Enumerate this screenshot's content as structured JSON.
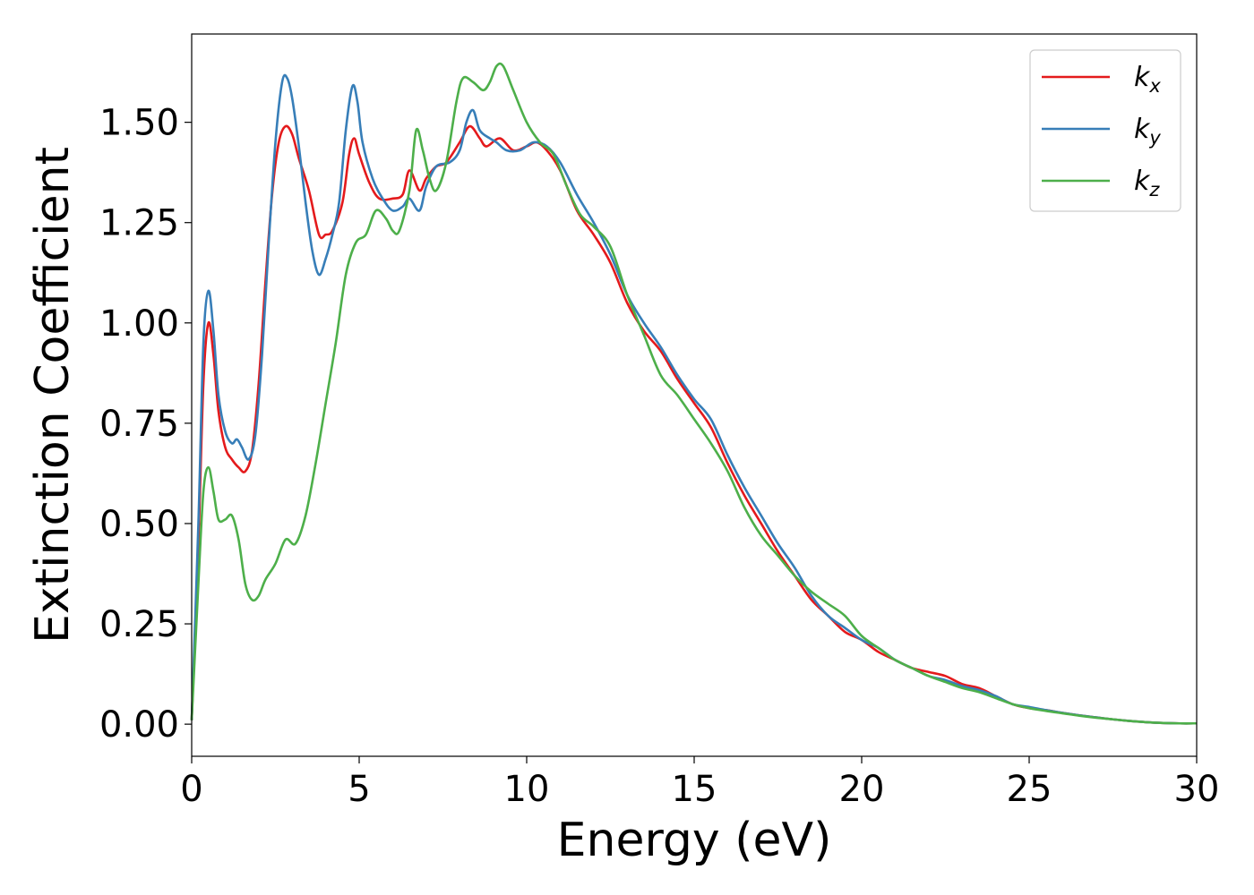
{
  "chart_data": {
    "type": "line",
    "title": "",
    "xlabel": "Energy (eV)",
    "ylabel": "Extinction Coefficient",
    "xlim": [
      0,
      30
    ],
    "ylim": [
      -0.08,
      1.72
    ],
    "xticks": [
      0,
      5,
      10,
      15,
      20,
      25,
      30
    ],
    "xtick_labels": [
      "0",
      "5",
      "10",
      "15",
      "20",
      "25",
      "30"
    ],
    "yticks": [
      0.0,
      0.25,
      0.5,
      0.75,
      1.0,
      1.25,
      1.5
    ],
    "ytick_labels": [
      "0.00",
      "0.25",
      "0.50",
      "0.75",
      "1.00",
      "1.25",
      "1.50"
    ],
    "grid": false,
    "legend_position": "top-right",
    "series": [
      {
        "name": "k_x",
        "label_main": "k",
        "label_sub": "x",
        "color": "#e41a1c",
        "points": [
          [
            0,
            0.01
          ],
          [
            0.2,
            0.45
          ],
          [
            0.35,
            0.85
          ],
          [
            0.5,
            1.0
          ],
          [
            0.65,
            0.92
          ],
          [
            0.8,
            0.78
          ],
          [
            1.0,
            0.69
          ],
          [
            1.2,
            0.66
          ],
          [
            1.4,
            0.64
          ],
          [
            1.6,
            0.63
          ],
          [
            1.8,
            0.68
          ],
          [
            2.0,
            0.85
          ],
          [
            2.2,
            1.1
          ],
          [
            2.4,
            1.32
          ],
          [
            2.6,
            1.45
          ],
          [
            2.8,
            1.49
          ],
          [
            3.0,
            1.47
          ],
          [
            3.2,
            1.41
          ],
          [
            3.5,
            1.33
          ],
          [
            3.8,
            1.22
          ],
          [
            4.0,
            1.22
          ],
          [
            4.2,
            1.23
          ],
          [
            4.5,
            1.3
          ],
          [
            4.7,
            1.42
          ],
          [
            4.85,
            1.46
          ],
          [
            5.0,
            1.42
          ],
          [
            5.3,
            1.35
          ],
          [
            5.6,
            1.31
          ],
          [
            6.0,
            1.31
          ],
          [
            6.3,
            1.32
          ],
          [
            6.5,
            1.38
          ],
          [
            6.8,
            1.33
          ],
          [
            7.0,
            1.36
          ],
          [
            7.3,
            1.39
          ],
          [
            7.6,
            1.4
          ],
          [
            8.0,
            1.45
          ],
          [
            8.3,
            1.49
          ],
          [
            8.6,
            1.46
          ],
          [
            8.8,
            1.44
          ],
          [
            9.2,
            1.46
          ],
          [
            9.6,
            1.43
          ],
          [
            10.0,
            1.44
          ],
          [
            10.3,
            1.45
          ],
          [
            10.6,
            1.43
          ],
          [
            11.0,
            1.38
          ],
          [
            11.5,
            1.28
          ],
          [
            12.0,
            1.22
          ],
          [
            12.5,
            1.15
          ],
          [
            13.0,
            1.05
          ],
          [
            13.5,
            0.98
          ],
          [
            14.0,
            0.93
          ],
          [
            14.5,
            0.86
          ],
          [
            15.0,
            0.8
          ],
          [
            15.5,
            0.74
          ],
          [
            16.0,
            0.65
          ],
          [
            16.5,
            0.57
          ],
          [
            17.0,
            0.5
          ],
          [
            17.5,
            0.43
          ],
          [
            18.0,
            0.37
          ],
          [
            18.5,
            0.31
          ],
          [
            19.0,
            0.27
          ],
          [
            19.5,
            0.23
          ],
          [
            20.0,
            0.21
          ],
          [
            20.5,
            0.18
          ],
          [
            21.0,
            0.16
          ],
          [
            21.5,
            0.14
          ],
          [
            22.0,
            0.13
          ],
          [
            22.5,
            0.12
          ],
          [
            23.0,
            0.1
          ],
          [
            23.5,
            0.09
          ],
          [
            24.0,
            0.07
          ],
          [
            24.5,
            0.05
          ],
          [
            25.0,
            0.04
          ],
          [
            25.5,
            0.035
          ],
          [
            26.0,
            0.028
          ],
          [
            26.5,
            0.022
          ],
          [
            27.0,
            0.017
          ],
          [
            27.5,
            0.012
          ],
          [
            28.0,
            0.008
          ],
          [
            28.5,
            0.005
          ],
          [
            29.0,
            0.003
          ],
          [
            29.5,
            0.002
          ],
          [
            30.0,
            0.002
          ]
        ]
      },
      {
        "name": "k_y",
        "label_main": "k",
        "label_sub": "y",
        "color": "#377eb8",
        "points": [
          [
            0,
            0.01
          ],
          [
            0.2,
            0.5
          ],
          [
            0.35,
            0.95
          ],
          [
            0.5,
            1.08
          ],
          [
            0.65,
            0.98
          ],
          [
            0.8,
            0.82
          ],
          [
            1.0,
            0.73
          ],
          [
            1.2,
            0.7
          ],
          [
            1.35,
            0.71
          ],
          [
            1.5,
            0.69
          ],
          [
            1.7,
            0.66
          ],
          [
            1.9,
            0.72
          ],
          [
            2.1,
            0.92
          ],
          [
            2.3,
            1.2
          ],
          [
            2.5,
            1.45
          ],
          [
            2.7,
            1.6
          ],
          [
            2.85,
            1.61
          ],
          [
            3.0,
            1.56
          ],
          [
            3.2,
            1.44
          ],
          [
            3.4,
            1.3
          ],
          [
            3.6,
            1.18
          ],
          [
            3.8,
            1.12
          ],
          [
            4.0,
            1.16
          ],
          [
            4.2,
            1.22
          ],
          [
            4.4,
            1.3
          ],
          [
            4.6,
            1.48
          ],
          [
            4.8,
            1.59
          ],
          [
            4.95,
            1.55
          ],
          [
            5.1,
            1.45
          ],
          [
            5.4,
            1.36
          ],
          [
            5.7,
            1.31
          ],
          [
            6.0,
            1.28
          ],
          [
            6.3,
            1.29
          ],
          [
            6.5,
            1.31
          ],
          [
            6.8,
            1.28
          ],
          [
            7.0,
            1.34
          ],
          [
            7.3,
            1.39
          ],
          [
            7.7,
            1.4
          ],
          [
            8.0,
            1.43
          ],
          [
            8.2,
            1.5
          ],
          [
            8.4,
            1.53
          ],
          [
            8.6,
            1.48
          ],
          [
            8.9,
            1.46
          ],
          [
            9.1,
            1.45
          ],
          [
            9.4,
            1.43
          ],
          [
            9.8,
            1.43
          ],
          [
            10.2,
            1.45
          ],
          [
            10.6,
            1.44
          ],
          [
            11.0,
            1.4
          ],
          [
            11.5,
            1.32
          ],
          [
            12.0,
            1.25
          ],
          [
            12.5,
            1.17
          ],
          [
            13.0,
            1.07
          ],
          [
            13.5,
            1.0
          ],
          [
            14.0,
            0.94
          ],
          [
            14.5,
            0.87
          ],
          [
            15.0,
            0.81
          ],
          [
            15.5,
            0.76
          ],
          [
            16.0,
            0.67
          ],
          [
            16.5,
            0.59
          ],
          [
            17.0,
            0.52
          ],
          [
            17.5,
            0.45
          ],
          [
            18.0,
            0.39
          ],
          [
            18.5,
            0.32
          ],
          [
            19.0,
            0.27
          ],
          [
            19.5,
            0.24
          ],
          [
            20.0,
            0.21
          ],
          [
            20.5,
            0.19
          ],
          [
            21.0,
            0.16
          ],
          [
            21.5,
            0.14
          ],
          [
            22.0,
            0.12
          ],
          [
            22.5,
            0.11
          ],
          [
            23.0,
            0.095
          ],
          [
            23.5,
            0.085
          ],
          [
            24.0,
            0.07
          ],
          [
            24.5,
            0.05
          ],
          [
            25.0,
            0.043
          ],
          [
            25.5,
            0.035
          ],
          [
            26.0,
            0.028
          ],
          [
            26.5,
            0.022
          ],
          [
            27.0,
            0.017
          ],
          [
            27.5,
            0.012
          ],
          [
            28.0,
            0.008
          ],
          [
            28.5,
            0.005
          ],
          [
            29.0,
            0.003
          ],
          [
            29.5,
            0.002
          ],
          [
            30.0,
            0.002
          ]
        ]
      },
      {
        "name": "k_z",
        "label_main": "k",
        "label_sub": "z",
        "color": "#4daf4a",
        "points": [
          [
            0,
            0.01
          ],
          [
            0.2,
            0.35
          ],
          [
            0.35,
            0.58
          ],
          [
            0.5,
            0.64
          ],
          [
            0.65,
            0.58
          ],
          [
            0.8,
            0.51
          ],
          [
            1.0,
            0.51
          ],
          [
            1.2,
            0.52
          ],
          [
            1.4,
            0.46
          ],
          [
            1.6,
            0.35
          ],
          [
            1.8,
            0.31
          ],
          [
            2.0,
            0.32
          ],
          [
            2.2,
            0.36
          ],
          [
            2.5,
            0.4
          ],
          [
            2.8,
            0.46
          ],
          [
            3.1,
            0.45
          ],
          [
            3.4,
            0.52
          ],
          [
            3.7,
            0.65
          ],
          [
            4.0,
            0.8
          ],
          [
            4.3,
            0.95
          ],
          [
            4.6,
            1.12
          ],
          [
            4.9,
            1.2
          ],
          [
            5.2,
            1.22
          ],
          [
            5.5,
            1.28
          ],
          [
            5.8,
            1.26
          ],
          [
            6.0,
            1.23
          ],
          [
            6.2,
            1.23
          ],
          [
            6.5,
            1.33
          ],
          [
            6.7,
            1.48
          ],
          [
            6.9,
            1.43
          ],
          [
            7.1,
            1.36
          ],
          [
            7.3,
            1.33
          ],
          [
            7.6,
            1.4
          ],
          [
            7.9,
            1.55
          ],
          [
            8.1,
            1.61
          ],
          [
            8.4,
            1.6
          ],
          [
            8.7,
            1.58
          ],
          [
            8.9,
            1.6
          ],
          [
            9.1,
            1.64
          ],
          [
            9.3,
            1.64
          ],
          [
            9.6,
            1.58
          ],
          [
            10.0,
            1.5
          ],
          [
            10.4,
            1.45
          ],
          [
            10.8,
            1.42
          ],
          [
            11.2,
            1.34
          ],
          [
            11.6,
            1.27
          ],
          [
            12.0,
            1.24
          ],
          [
            12.5,
            1.19
          ],
          [
            13.0,
            1.07
          ],
          [
            13.5,
            0.97
          ],
          [
            14.0,
            0.87
          ],
          [
            14.5,
            0.82
          ],
          [
            15.0,
            0.76
          ],
          [
            15.5,
            0.7
          ],
          [
            16.0,
            0.63
          ],
          [
            16.5,
            0.54
          ],
          [
            17.0,
            0.47
          ],
          [
            17.5,
            0.42
          ],
          [
            18.0,
            0.37
          ],
          [
            18.5,
            0.33
          ],
          [
            19.0,
            0.3
          ],
          [
            19.5,
            0.27
          ],
          [
            20.0,
            0.22
          ],
          [
            20.5,
            0.19
          ],
          [
            21.0,
            0.16
          ],
          [
            21.5,
            0.14
          ],
          [
            22.0,
            0.12
          ],
          [
            22.5,
            0.105
          ],
          [
            23.0,
            0.09
          ],
          [
            23.5,
            0.08
          ],
          [
            24.0,
            0.065
          ],
          [
            24.5,
            0.05
          ],
          [
            25.0,
            0.04
          ],
          [
            25.5,
            0.033
          ],
          [
            26.0,
            0.027
          ],
          [
            26.5,
            0.021
          ],
          [
            27.0,
            0.016
          ],
          [
            27.5,
            0.012
          ],
          [
            28.0,
            0.008
          ],
          [
            28.5,
            0.005
          ],
          [
            29.0,
            0.003
          ],
          [
            29.5,
            0.002
          ],
          [
            30.0,
            0.002
          ]
        ]
      }
    ]
  }
}
